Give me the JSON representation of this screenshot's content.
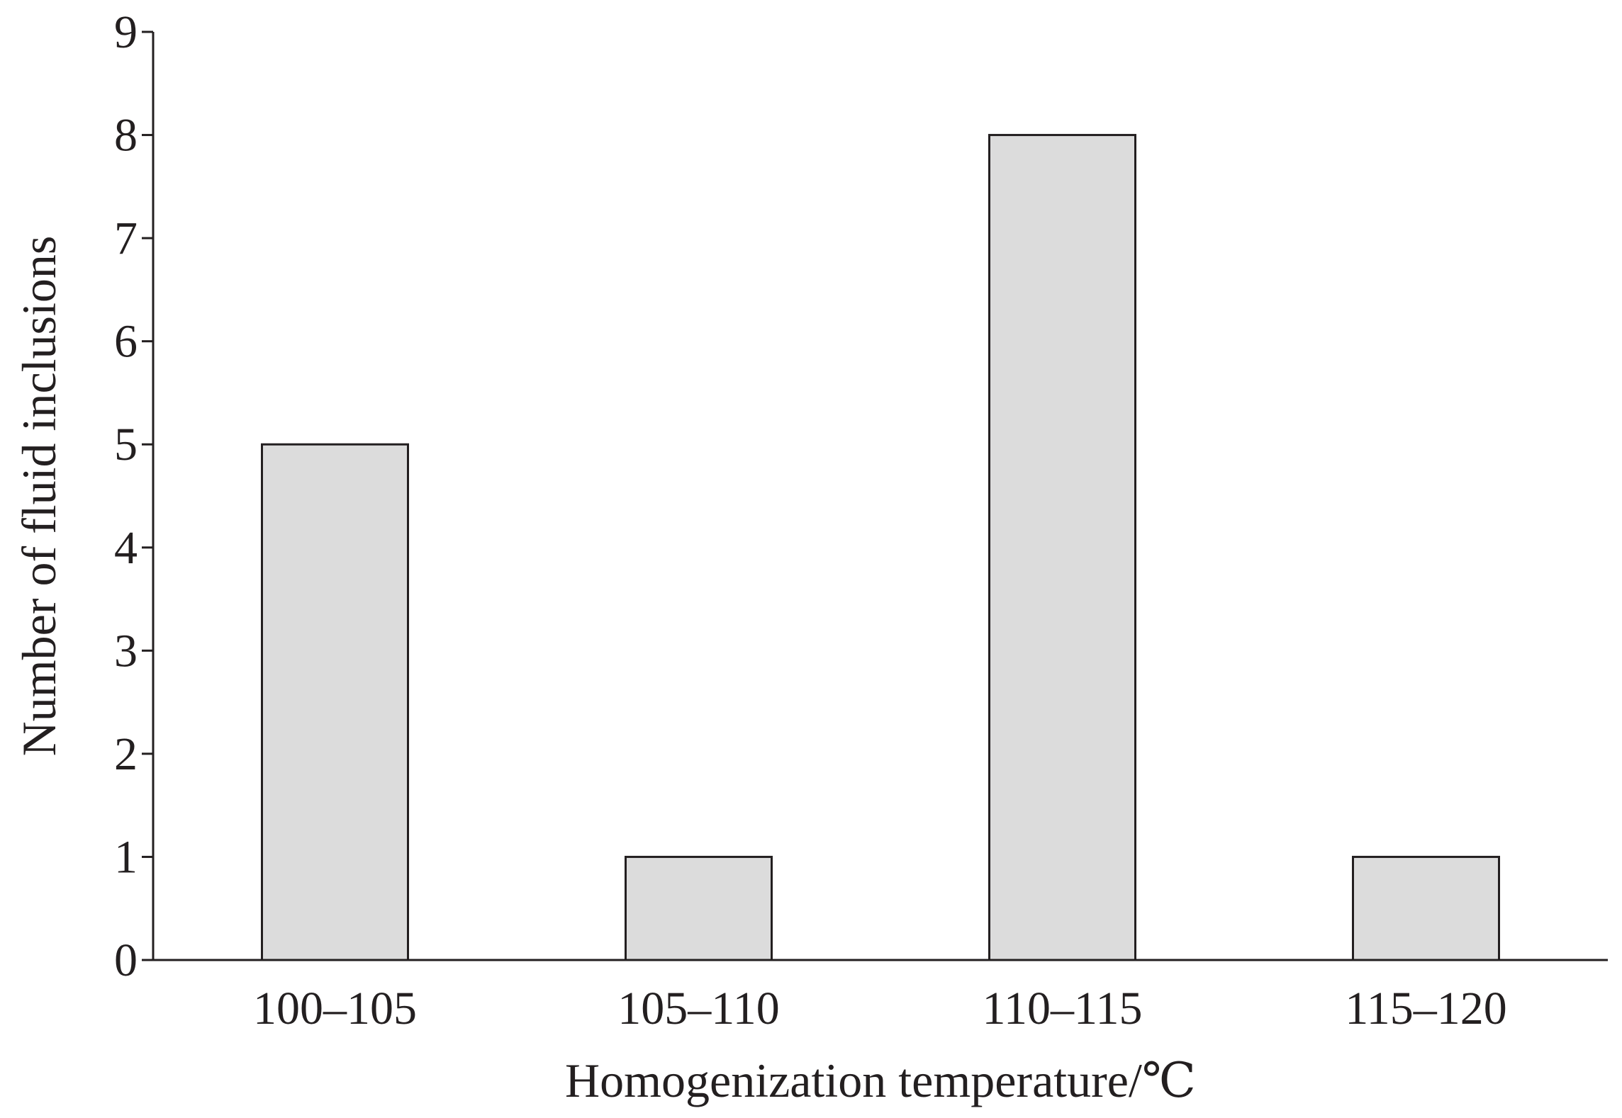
{
  "chart_data": {
    "type": "bar",
    "title": "",
    "categories": [
      "100–105",
      "105–110",
      "110–115",
      "115–120"
    ],
    "values": [
      5,
      1,
      8,
      1
    ],
    "xlabel": "Homogenization temperature/℃",
    "ylabel": "Number of fluid inclusions",
    "ylim": [
      0,
      9
    ],
    "yticks": [
      "0",
      "1",
      "2",
      "3",
      "4",
      "5",
      "6",
      "7",
      "8",
      "9"
    ],
    "grid": false,
    "legend": "none",
    "colors": {
      "bar_fill": "#dcdcdc",
      "bar_stroke": "#231f20",
      "axis": "#231f20"
    }
  }
}
